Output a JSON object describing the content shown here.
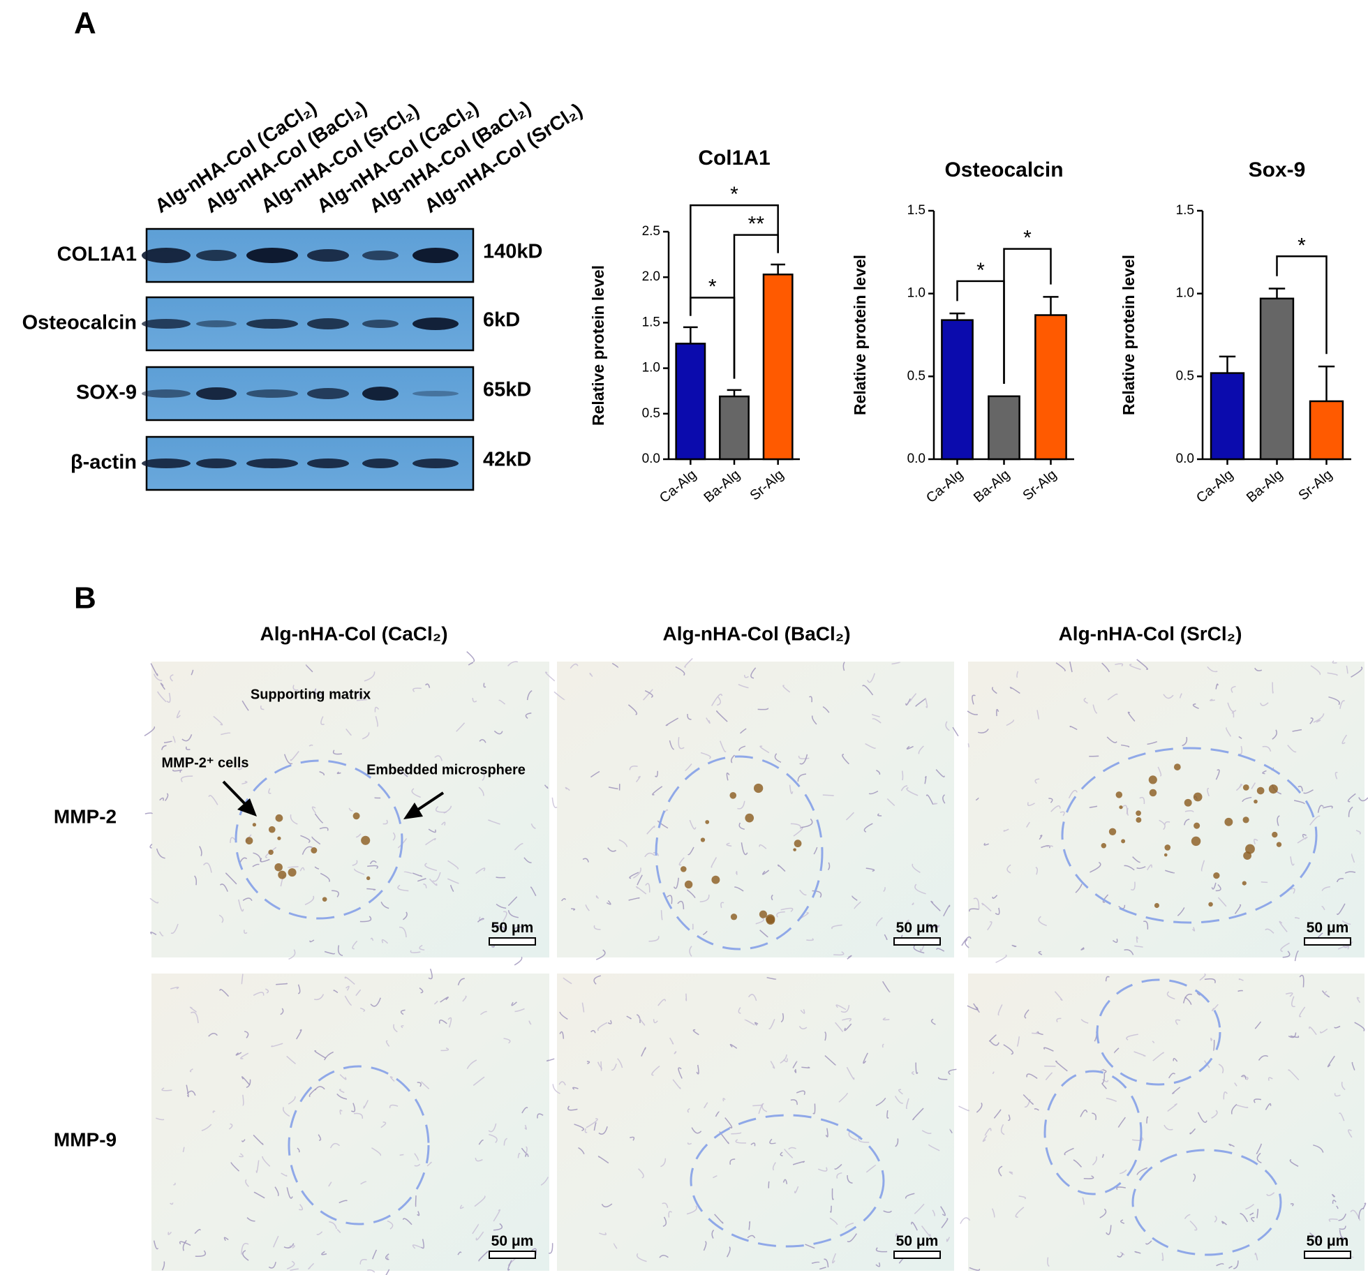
{
  "panel_a": {
    "label": "A",
    "lanes": [
      "Alg-nHA-Col (CaCl₂)",
      "Alg-nHA-Col (BaCl₂)",
      "Alg-nHA-Col (SrCl₂)",
      "Alg-nHA-Col (CaCl₂)",
      "Alg-nHA-Col (BaCl₂)",
      "Alg-nHA-Col (SrCl₂)"
    ],
    "blots": [
      {
        "name": "COL1A1",
        "size": "140kD"
      },
      {
        "name": "Osteocalcin",
        "size": "6kD"
      },
      {
        "name": "SOX-9",
        "size": "65kD"
      },
      {
        "name": "β-actin",
        "size": "42kD"
      }
    ]
  },
  "chart_data": [
    {
      "type": "bar",
      "title": "Col1A1",
      "ylabel": "Relative protein level",
      "categories": [
        "Ca-Alg",
        "Ba-Alg",
        "Sr-Alg"
      ],
      "values": [
        1.27,
        0.69,
        2.03
      ],
      "errors": [
        0.18,
        0.07,
        0.11
      ],
      "colors": [
        "#0b0bad",
        "#666666",
        "#ff5a00"
      ],
      "ylim": [
        0,
        2.5
      ],
      "yticks": [
        {
          "value": 0,
          "label": "0.0"
        },
        0.5,
        {
          "value": 1,
          "label": "1.0"
        },
        1.5,
        {
          "value": 2,
          "label": "2.0"
        },
        2.5
      ],
      "significance": [
        {
          "from": 0,
          "to": 1,
          "label": "*"
        },
        {
          "from": 1,
          "to": 2,
          "label": "**"
        },
        {
          "from": 0,
          "to": 2,
          "label": "*"
        }
      ]
    },
    {
      "type": "bar",
      "title": "Osteocalcin",
      "ylabel": "Relative protein level",
      "categories": [
        "Ca-Alg",
        "Ba-Alg",
        "Sr-Alg"
      ],
      "values": [
        0.84,
        0.38,
        0.87
      ],
      "errors": [
        0.04,
        0,
        0.11
      ],
      "colors": [
        "#0b0bad",
        "#666666",
        "#ff5a00"
      ],
      "ylim": [
        0,
        1.5
      ],
      "yticks": [
        {
          "value": 0,
          "label": "0.0"
        },
        0.5,
        {
          "value": 1,
          "label": "1.0"
        },
        1.5
      ],
      "significance": [
        {
          "from": 0,
          "to": 1,
          "label": "*"
        },
        {
          "from": 1,
          "to": 2,
          "label": "*"
        }
      ]
    },
    {
      "type": "bar",
      "title": "Sox-9",
      "ylabel": "Relative protein level",
      "categories": [
        "Ca-Alg",
        "Ba-Alg",
        "Sr-Alg"
      ],
      "values": [
        0.52,
        0.97,
        0.35
      ],
      "errors": [
        0.1,
        0.06,
        0.21
      ],
      "colors": [
        "#0b0bad",
        "#666666",
        "#ff5a00"
      ],
      "ylim": [
        0,
        1.5
      ],
      "yticks": [
        {
          "value": 0,
          "label": "0.0"
        },
        0.5,
        {
          "value": 1,
          "label": "1.0"
        },
        1.5
      ],
      "significance": [
        {
          "from": 1,
          "to": 2,
          "label": "*"
        }
      ]
    }
  ],
  "panel_b": {
    "label": "B",
    "columns": [
      "Alg-nHA-Col (CaCl₂)",
      "Alg-nHA-Col (BaCl₂)",
      "Alg-nHA-Col (SrCl₂)"
    ],
    "rows": [
      "MMP-2",
      "MMP-9"
    ],
    "scale_bar": "50 μm",
    "annotations": {
      "matrix": "Supporting matrix",
      "cells": "MMP-2⁺ cells",
      "microsphere": "Embedded microsphere"
    }
  }
}
